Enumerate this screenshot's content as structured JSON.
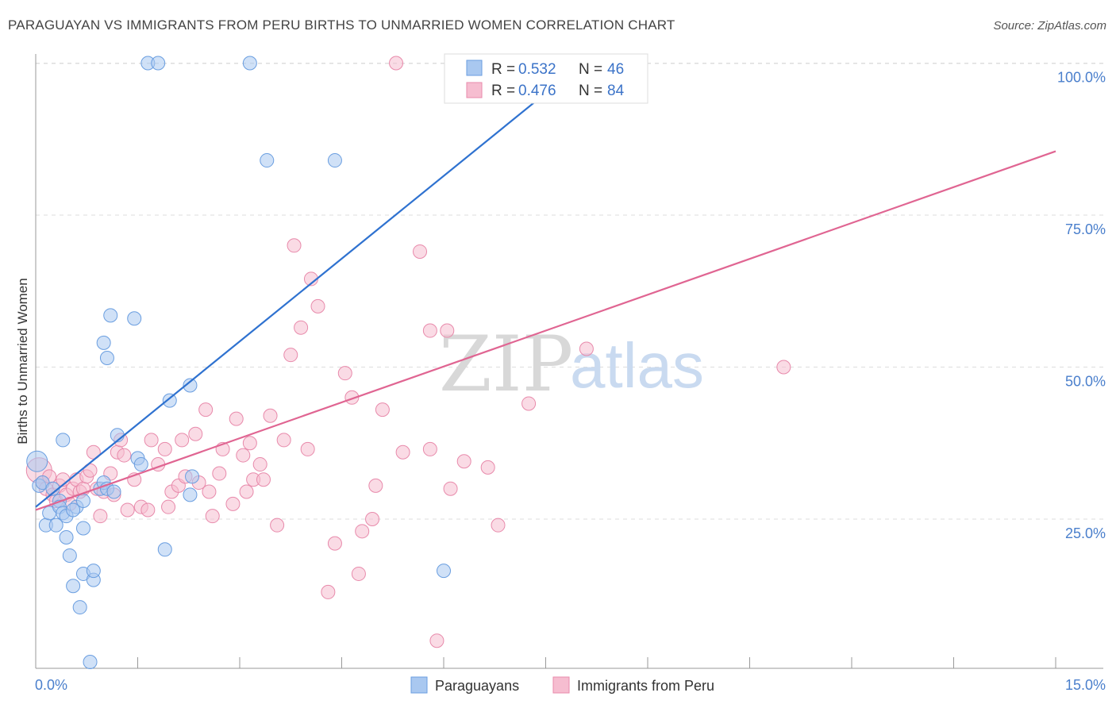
{
  "title": "PARAGUAYAN VS IMMIGRANTS FROM PERU BIRTHS TO UNMARRIED WOMEN CORRELATION CHART",
  "source": "Source: ZipAtlas.com",
  "watermark": {
    "zip": "ZIP",
    "atlas": "atlas"
  },
  "colors": {
    "blue_fill": "#a9c8f0",
    "blue_stroke": "#6a9ee0",
    "blue_line": "#2f72d0",
    "pink_fill": "#f6bdd0",
    "pink_stroke": "#e88aab",
    "pink_line": "#e06592",
    "grid": "#dddddd",
    "tick_text": "#4a7fcc"
  },
  "legend": {
    "rows": [
      {
        "r_label": "R =",
        "r_value": "0.532",
        "n_label": "N =",
        "n_value": "46"
      },
      {
        "r_label": "R =",
        "r_value": "0.476",
        "n_label": "N =",
        "n_value": "84"
      }
    ]
  },
  "bottom_legend": [
    "Paraguayans",
    "Immigrants from Peru"
  ],
  "chart_data": {
    "type": "scatter",
    "title": "PARAGUAYAN VS IMMIGRANTS FROM PERU BIRTHS TO UNMARRIED WOMEN CORRELATION CHART",
    "xlabel": "",
    "ylabel": "Births to Unmarried Women",
    "xlim": [
      0,
      15
    ],
    "ylim": [
      0,
      102
    ],
    "x_tick_labels": [
      "0.0%",
      "15.0%"
    ],
    "y_ticks": [
      25,
      50,
      75,
      100
    ],
    "y_tick_labels": [
      "25.0%",
      "50.0%",
      "75.0%",
      "100.0%"
    ],
    "series": [
      {
        "name": "Paraguayans",
        "R": 0.532,
        "N": 46,
        "trend": {
          "x": [
            0,
            8.1
          ],
          "y": [
            27,
            100.5
          ]
        },
        "points": [
          [
            0.02,
            34.5
          ],
          [
            0.05,
            30.5
          ],
          [
            0.1,
            31
          ],
          [
            0.15,
            24
          ],
          [
            0.2,
            26
          ],
          [
            0.25,
            30
          ],
          [
            0.3,
            24
          ],
          [
            0.35,
            28
          ],
          [
            0.35,
            27
          ],
          [
            0.4,
            26
          ],
          [
            0.45,
            25.5
          ],
          [
            0.4,
            38
          ],
          [
            0.45,
            22
          ],
          [
            0.5,
            19
          ],
          [
            0.55,
            14
          ],
          [
            0.6,
            27
          ],
          [
            0.65,
            10.5
          ],
          [
            0.7,
            16
          ],
          [
            0.7,
            23.5
          ],
          [
            0.85,
            15
          ],
          [
            0.85,
            16.5
          ],
          [
            0.8,
            1.5
          ],
          [
            0.95,
            30
          ],
          [
            1.0,
            31
          ],
          [
            1.0,
            54
          ],
          [
            1.05,
            51.5
          ],
          [
            1.05,
            30
          ],
          [
            1.1,
            58.5
          ],
          [
            1.2,
            38.8
          ],
          [
            1.45,
            58
          ],
          [
            1.5,
            35
          ],
          [
            1.55,
            34
          ],
          [
            1.65,
            100
          ],
          [
            1.8,
            100
          ],
          [
            1.9,
            20
          ],
          [
            1.97,
            44.5
          ],
          [
            2.27,
            47
          ],
          [
            2.27,
            29
          ],
          [
            2.3,
            32
          ],
          [
            3.15,
            100
          ],
          [
            3.4,
            84
          ],
          [
            4.4,
            84
          ],
          [
            6.0,
            16.5
          ],
          [
            0.7,
            28
          ],
          [
            0.55,
            26.5
          ],
          [
            1.15,
            29.5
          ]
        ]
      },
      {
        "name": "Immigrants from Peru",
        "R": 0.476,
        "N": 84,
        "trend": {
          "x": [
            0,
            15
          ],
          "y": [
            26.5,
            85.5
          ]
        },
        "points": [
          [
            0.05,
            33
          ],
          [
            0.1,
            31
          ],
          [
            0.15,
            30
          ],
          [
            0.2,
            32
          ],
          [
            0.25,
            29
          ],
          [
            0.3,
            28
          ],
          [
            0.35,
            30.5
          ],
          [
            0.4,
            31.5
          ],
          [
            0.45,
            29
          ],
          [
            0.5,
            27.5
          ],
          [
            0.55,
            30
          ],
          [
            0.6,
            31.5
          ],
          [
            0.65,
            29.5
          ],
          [
            0.7,
            30
          ],
          [
            0.75,
            32
          ],
          [
            0.8,
            33
          ],
          [
            0.85,
            36
          ],
          [
            0.9,
            30
          ],
          [
            0.95,
            25.5
          ],
          [
            1.0,
            29.5
          ],
          [
            1.1,
            32.5
          ],
          [
            1.15,
            29
          ],
          [
            1.2,
            36
          ],
          [
            1.25,
            38
          ],
          [
            1.3,
            35.5
          ],
          [
            1.35,
            26.5
          ],
          [
            1.45,
            31.5
          ],
          [
            1.55,
            27
          ],
          [
            1.65,
            26.5
          ],
          [
            1.7,
            38
          ],
          [
            1.8,
            34
          ],
          [
            1.9,
            36.5
          ],
          [
            1.95,
            27
          ],
          [
            2.0,
            29.5
          ],
          [
            2.1,
            30.5
          ],
          [
            2.15,
            38
          ],
          [
            2.2,
            32
          ],
          [
            2.35,
            39
          ],
          [
            2.4,
            31
          ],
          [
            2.5,
            43
          ],
          [
            2.55,
            29.5
          ],
          [
            2.6,
            25.5
          ],
          [
            2.7,
            32.5
          ],
          [
            2.75,
            36.5
          ],
          [
            2.9,
            27.5
          ],
          [
            2.95,
            41.5
          ],
          [
            3.05,
            35.5
          ],
          [
            3.1,
            29.5
          ],
          [
            3.15,
            37.5
          ],
          [
            3.2,
            31.5
          ],
          [
            3.3,
            34
          ],
          [
            3.35,
            31.5
          ],
          [
            3.45,
            42
          ],
          [
            3.55,
            24
          ],
          [
            3.65,
            38
          ],
          [
            3.75,
            52
          ],
          [
            3.8,
            70
          ],
          [
            3.9,
            56.5
          ],
          [
            4.0,
            36.5
          ],
          [
            4.05,
            64.5
          ],
          [
            4.15,
            60
          ],
          [
            4.3,
            13
          ],
          [
            4.4,
            21
          ],
          [
            4.55,
            49
          ],
          [
            4.65,
            45
          ],
          [
            4.75,
            16
          ],
          [
            4.8,
            23
          ],
          [
            4.95,
            25
          ],
          [
            5.1,
            43
          ],
          [
            5.0,
            30.5
          ],
          [
            5.4,
            36
          ],
          [
            5.8,
            36.5
          ],
          [
            5.65,
            69
          ],
          [
            5.8,
            56
          ],
          [
            5.9,
            5
          ],
          [
            6.05,
            56
          ],
          [
            6.1,
            30
          ],
          [
            6.3,
            34.5
          ],
          [
            6.65,
            33.5
          ],
          [
            6.8,
            24
          ],
          [
            7.25,
            44
          ],
          [
            8.1,
            53
          ],
          [
            11.0,
            50
          ],
          [
            5.3,
            100
          ]
        ]
      }
    ]
  }
}
